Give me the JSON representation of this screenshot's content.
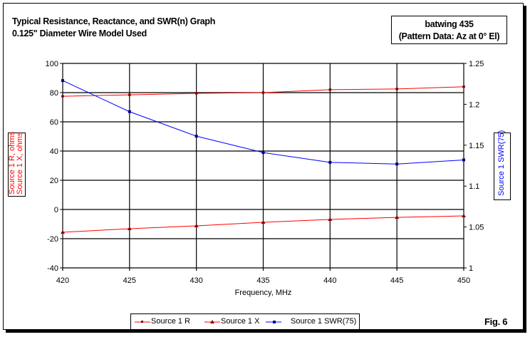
{
  "header": {
    "title_line1": "Typical Resistance, Reactance, and SWR(n) Graph",
    "title_line2": "0.125\" Diameter Wire Model Used",
    "box_line1": "batwing 435",
    "box_line2": "(Pattern Data: Az at 0° El)"
  },
  "figure_label": "Fig. 6",
  "chart_data": {
    "type": "line",
    "x": [
      420,
      425,
      430,
      435,
      440,
      445,
      450
    ],
    "xlabel": "Frequency, MHz",
    "xlim": [
      420,
      450
    ],
    "xticks": [
      420,
      425,
      430,
      435,
      440,
      445,
      450
    ],
    "ylabel_left": [
      "Source 1 R, ohms",
      "Source 1 X, ohms"
    ],
    "ylim_left": [
      -40,
      100
    ],
    "yticks_left": [
      -40,
      -20,
      0,
      20,
      40,
      60,
      80,
      100
    ],
    "ylabel_right": "Source 1 SWR(75)",
    "ylim_right": [
      1,
      1.25
    ],
    "yticks_right": [
      1,
      1.05,
      1.1,
      1.15,
      1.2,
      1.25
    ],
    "grid": true,
    "legend_position": "bottom",
    "series": [
      {
        "name": "Source 1 R",
        "axis": "left",
        "color": "#ff0000",
        "marker": "diamond",
        "values": [
          77.5,
          78.5,
          79.5,
          80,
          82,
          82.5,
          84
        ]
      },
      {
        "name": "Source 1 X",
        "axis": "left",
        "color": "#ff0000",
        "marker": "triangle",
        "values": [
          -15.6,
          -13.2,
          -11.2,
          -8.8,
          -6.8,
          -5.4,
          -4.4
        ]
      },
      {
        "name": "Source 1 SWR(75)",
        "axis": "right",
        "color": "#0000ff",
        "marker": "square",
        "values": [
          1.229,
          1.191,
          1.161,
          1.141,
          1.129,
          1.127,
          1.132
        ]
      }
    ]
  }
}
